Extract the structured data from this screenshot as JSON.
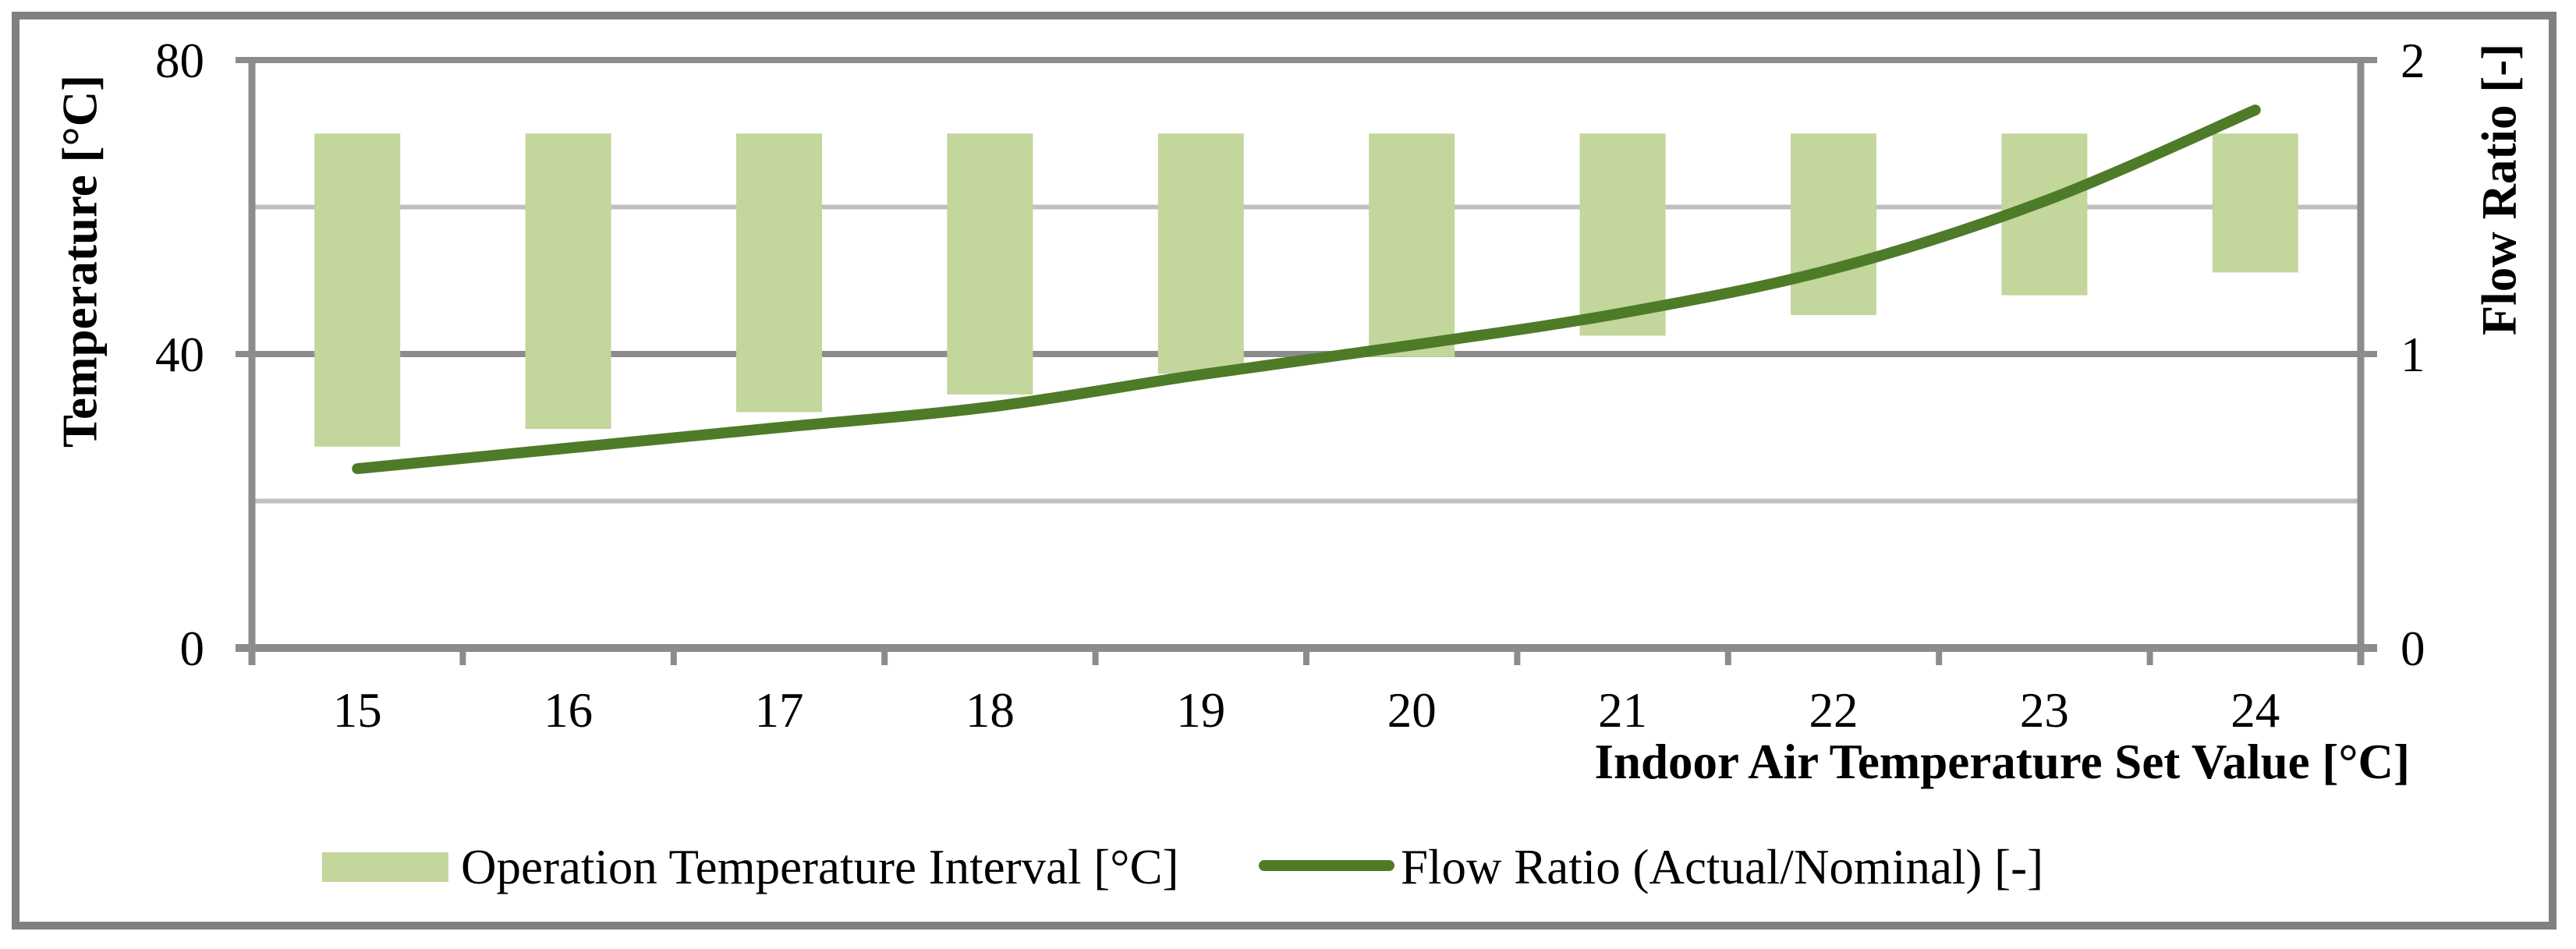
{
  "chart_data": {
    "type": "bar",
    "subtype": "floating-range-bars-with-smoothed-line",
    "title": "",
    "categories": [
      15,
      16,
      17,
      18,
      19,
      20,
      21,
      22,
      23,
      24
    ],
    "series": [
      {
        "name": "Operation Temperature Interval [°C]",
        "type": "range-bar",
        "axis": "left",
        "low": [
          27.4,
          29.8,
          32.1,
          34.5,
          37.3,
          39.6,
          42.5,
          45.3,
          48.0,
          51.1
        ],
        "high": [
          70,
          70,
          70,
          70,
          70,
          70,
          70,
          70,
          70,
          70
        ],
        "color": "#c3d69b"
      },
      {
        "name": "Flow Ratio (Actual/Nominal) [-]",
        "type": "line",
        "axis": "right",
        "values": [
          0.61,
          0.68,
          0.75,
          0.82,
          0.93,
          1.03,
          1.14,
          1.29,
          1.52,
          1.83
        ],
        "color": "#4e7b28",
        "smooth": true
      }
    ],
    "xlabel": "Indoor Air Temperature Set Value [°C]",
    "ylabel_left": "Temperature [°C]",
    "ylabel_right": "Flow Ratio [-]",
    "ylim_left": [
      0,
      80
    ],
    "ylim_right": [
      0,
      2
    ],
    "yticks_left": [
      0,
      40,
      80
    ],
    "yticks_right": [
      0,
      1,
      2
    ],
    "gridlines_left_minor": [
      20,
      60
    ],
    "gridlines_left_major": [
      40,
      80
    ],
    "grid": true,
    "legend_position": "bottom"
  },
  "colors": {
    "bar_fill": "#c3d69b",
    "line_stroke": "#4e7b28",
    "axis_dark_gray": "#8c8c8c",
    "grid_light_gray": "#bfbfbf",
    "border_gray": "#808080",
    "text_black": "#000000"
  }
}
